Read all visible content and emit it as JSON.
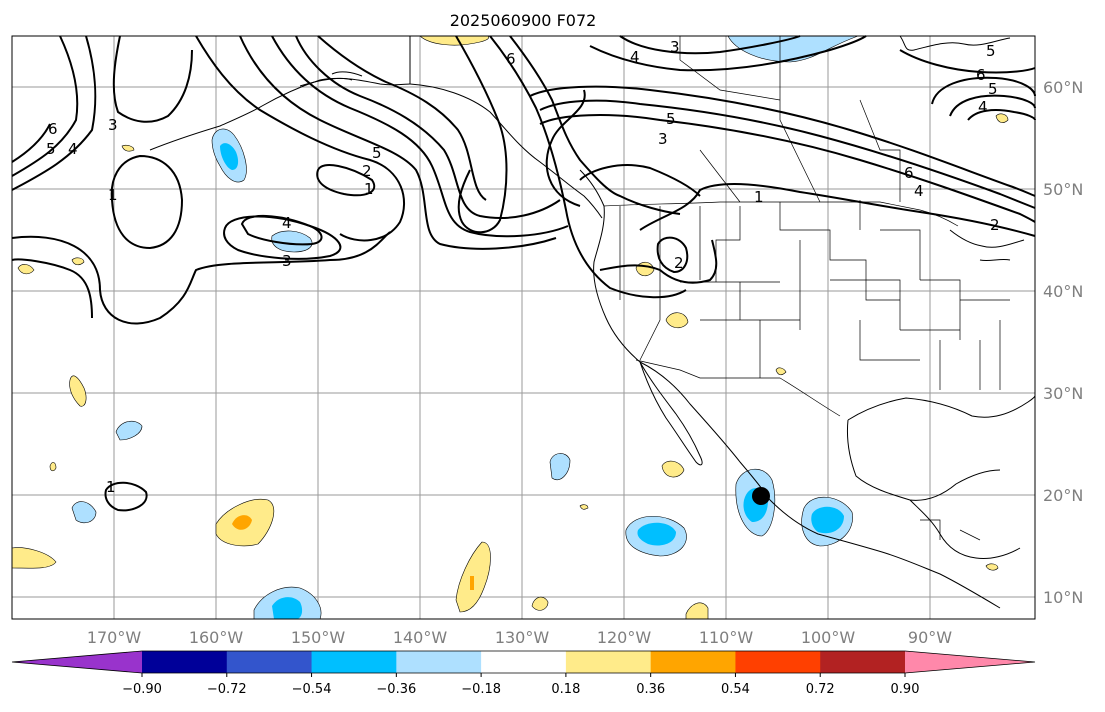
{
  "title": "2025060900 F072",
  "lon_labels": [
    "170°W",
    "160°W",
    "150°W",
    "140°W",
    "130°W",
    "120°W",
    "110°W",
    "100°W",
    "90°W"
  ],
  "lat_labels": [
    "60°N",
    "50°N",
    "40°N",
    "30°N",
    "20°N",
    "10°N"
  ],
  "colorbar": {
    "colors": [
      "#9933cc",
      "#000099",
      "#3355cc",
      "#00bfff",
      "#aee0ff",
      "#ffffff",
      "#ffeb8a",
      "#ffa500",
      "#ff4000",
      "#b22222",
      "#ff88aa"
    ],
    "tick_labels": [
      "−0.90",
      "−0.72",
      "−0.54",
      "−0.36",
      "−0.18",
      "0.18",
      "0.36",
      "0.54",
      "0.72",
      "0.90"
    ]
  },
  "contour_labels": [
    "6",
    "5",
    "4",
    "3",
    "1",
    "5",
    "2",
    "1",
    "4",
    "3",
    "6",
    "4",
    "3",
    "5",
    "3",
    "1",
    "6",
    "5",
    "4",
    "4",
    "6",
    "5",
    "2",
    "2",
    "1"
  ],
  "colors": {
    "grid": "#9a9a9a",
    "contour": "#000000",
    "land_line": "#000000",
    "lightblue": "#aee0ff",
    "cyan": "#00bfff",
    "yellow": "#ffeb8a",
    "orange": "#ffa500",
    "marker": "#000000"
  }
}
